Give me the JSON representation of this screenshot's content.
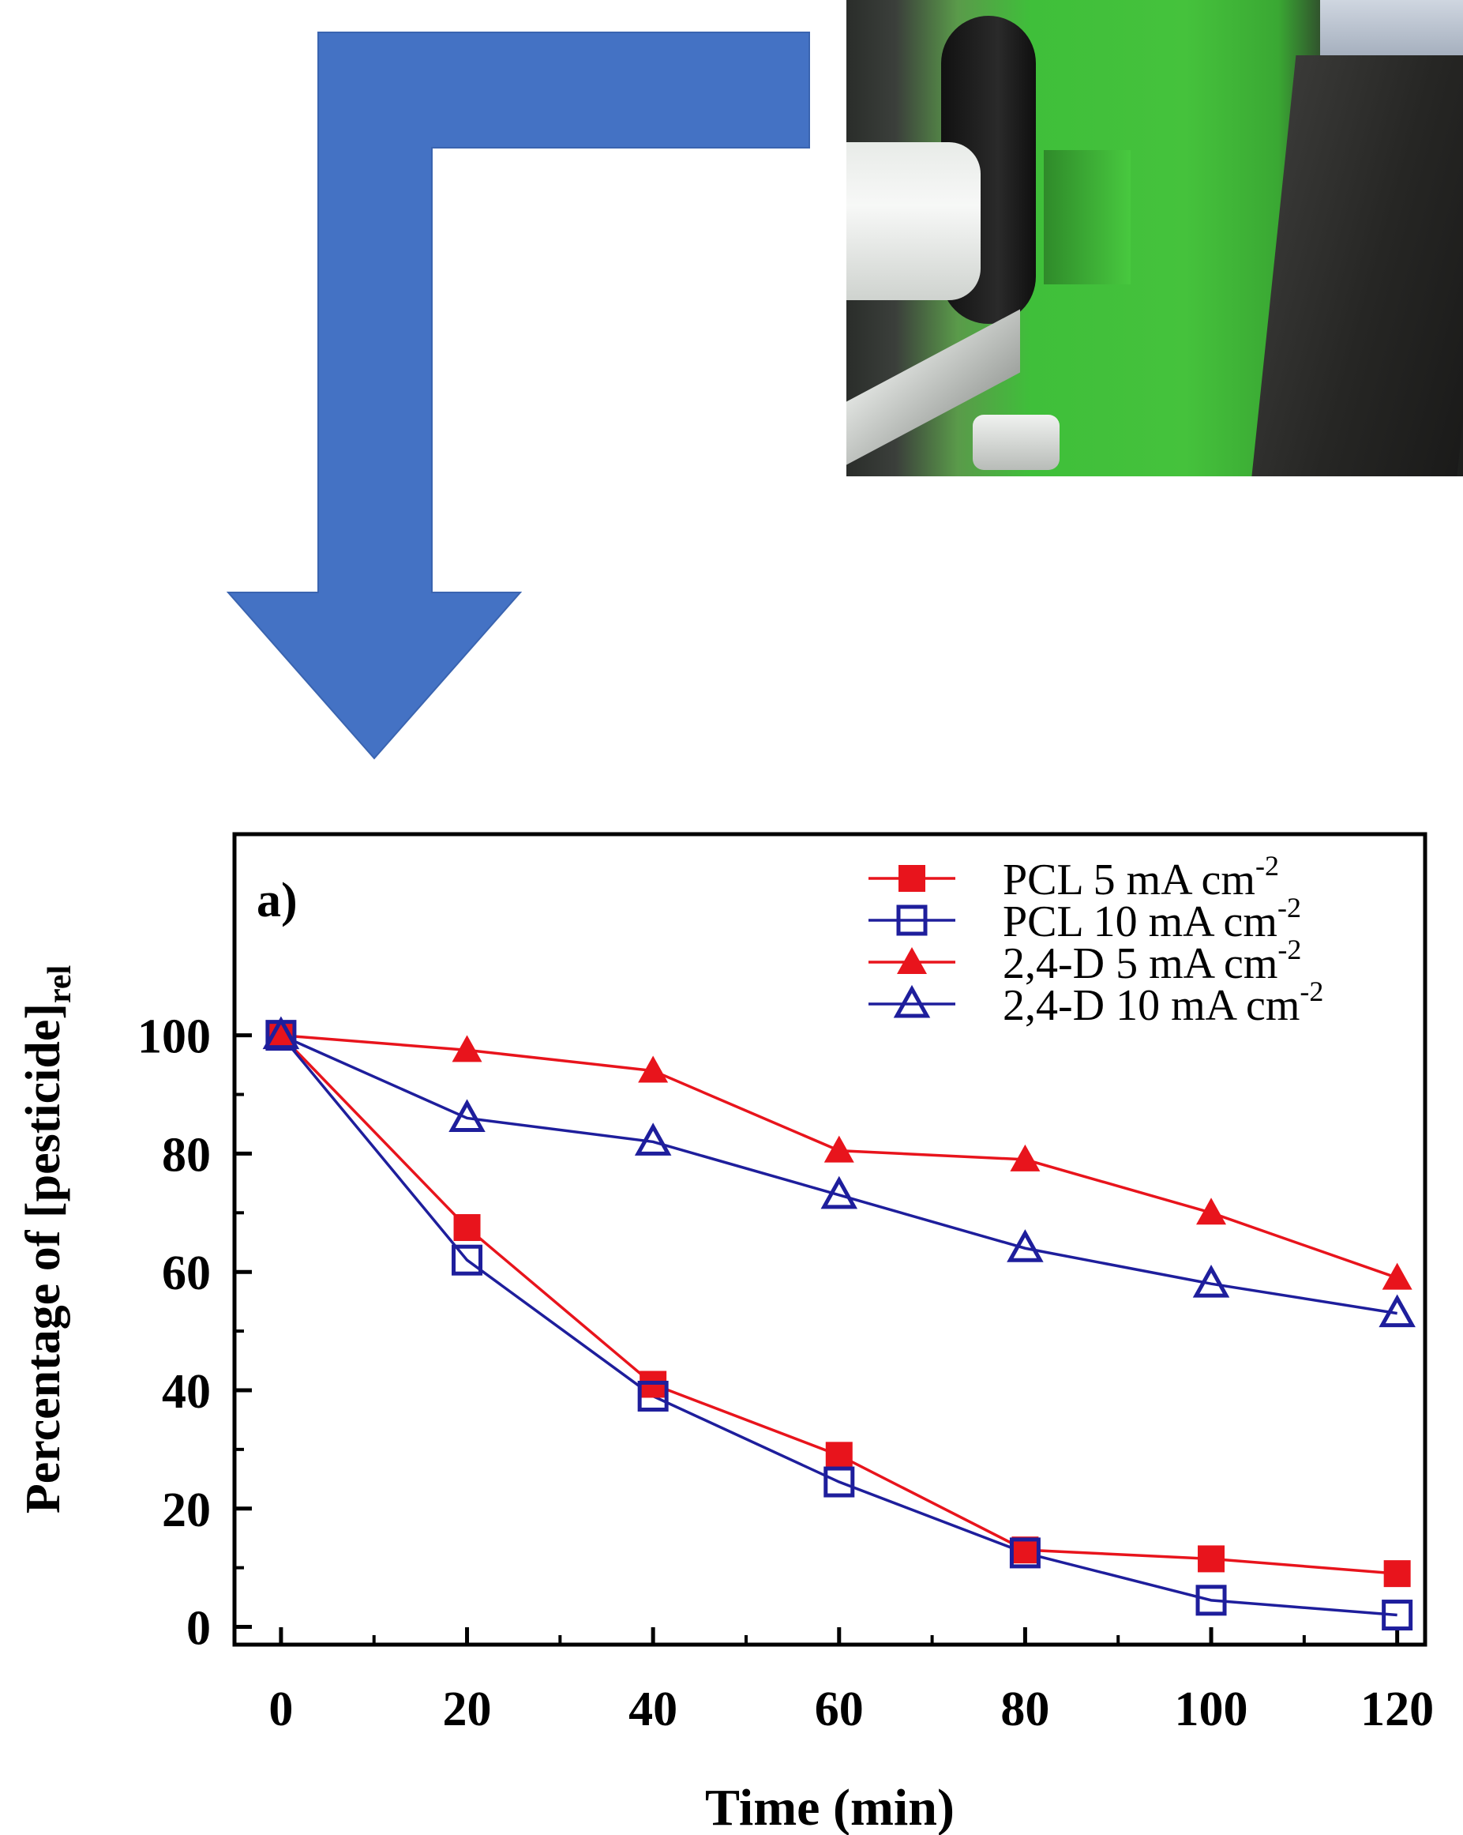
{
  "colors": {
    "arrow": "#4472C4",
    "red_series": "#E8141C",
    "blue_series": "#1E1E9C",
    "axis": "#000000"
  },
  "photo": {
    "description_icon": "machine-photo"
  },
  "chart_data": {
    "type": "line",
    "panel_label": "a)",
    "xlabel": "Time (min)",
    "ylabel_main": "Percentage of [pesticide]",
    "ylabel_sub": "rel",
    "xlim": [
      -5,
      123
    ],
    "ylim": [
      -3,
      134
    ],
    "xticks": [
      0,
      20,
      40,
      60,
      80,
      100,
      120
    ],
    "yticks": [
      0,
      20,
      40,
      60,
      80,
      100
    ],
    "xtick_labels": [
      "0",
      "20",
      "40",
      "60",
      "80",
      "100",
      "120"
    ],
    "ytick_labels": [
      "0",
      "20",
      "40",
      "60",
      "80",
      "100"
    ],
    "grid": false,
    "legend_position": "top-right",
    "x": [
      0,
      20,
      40,
      60,
      80,
      100,
      120
    ],
    "series": [
      {
        "name": "PCL 5 mA cm",
        "sup": "-2",
        "marker": "filled-square",
        "color": "#E8141C",
        "values": [
          100,
          67.5,
          41,
          29,
          13,
          11.5,
          9
        ]
      },
      {
        "name": "PCL 10 mA cm",
        "sup": "-2",
        "marker": "open-square",
        "color": "#1E1E9C",
        "values": [
          100,
          62,
          39,
          24.5,
          12.5,
          4.5,
          2
        ]
      },
      {
        "name": "2,4-D 5 mA cm",
        "sup": "-2",
        "marker": "filled-triangle",
        "color": "#E8141C",
        "values": [
          100,
          97.5,
          94,
          80.5,
          79,
          70,
          59
        ]
      },
      {
        "name": "2,4-D 10 mA cm",
        "sup": "-2",
        "marker": "open-triangle",
        "color": "#1E1E9C",
        "values": [
          100,
          86,
          82,
          73,
          64,
          58,
          53
        ]
      }
    ]
  }
}
